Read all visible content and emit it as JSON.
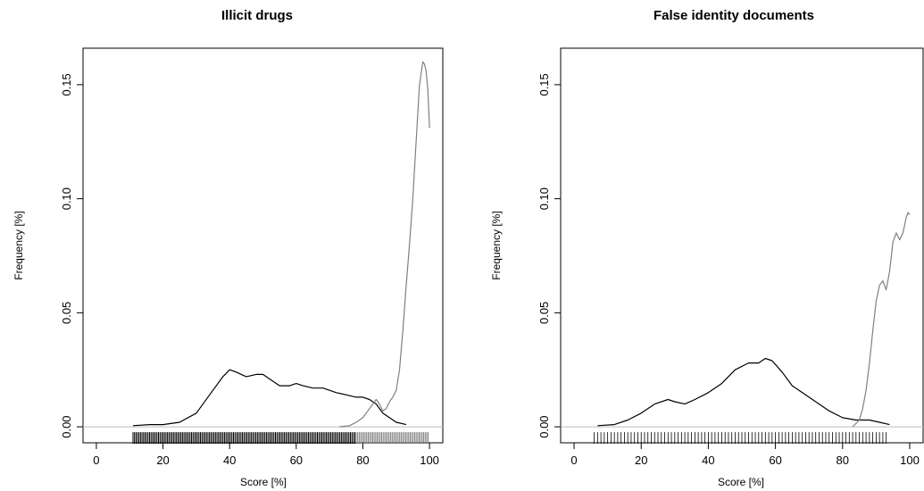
{
  "chart_data": [
    {
      "type": "line",
      "title": "Illicit drugs",
      "xlabel": "Score [%]",
      "ylabel": "Frequency [%]",
      "xlim": [
        -4,
        104
      ],
      "ylim": [
        -0.007,
        0.166
      ],
      "xticks": [
        "0",
        "20",
        "40",
        "60",
        "80",
        "100"
      ],
      "yticks": [
        "0.00",
        "0.05",
        "0.10",
        "0.15"
      ],
      "grid": false,
      "series": [
        {
          "color": "#000000",
          "x": [
            11,
            16,
            20,
            25,
            30,
            35,
            38,
            40,
            42,
            45,
            48,
            50,
            52,
            55,
            58,
            60,
            62,
            65,
            68,
            70,
            72,
            75,
            78,
            80,
            82,
            84,
            86,
            88,
            90,
            93
          ],
          "y": [
            0.0005,
            0.001,
            0.001,
            0.002,
            0.006,
            0.016,
            0.022,
            0.025,
            0.024,
            0.022,
            0.023,
            0.023,
            0.021,
            0.018,
            0.018,
            0.019,
            0.018,
            0.017,
            0.017,
            0.016,
            0.015,
            0.014,
            0.013,
            0.013,
            0.012,
            0.01,
            0.006,
            0.004,
            0.002,
            0.001
          ]
        },
        {
          "color": "#808080",
          "x": [
            73,
            76,
            78,
            80,
            82,
            84,
            85,
            86,
            87,
            88,
            89,
            90,
            91,
            92,
            93,
            94,
            95,
            96,
            97,
            98,
            98.5,
            99,
            99.5,
            100
          ],
          "y": [
            0.0,
            0.0005,
            0.002,
            0.004,
            0.008,
            0.012,
            0.01,
            0.007,
            0.008,
            0.011,
            0.013,
            0.016,
            0.025,
            0.042,
            0.062,
            0.08,
            0.1,
            0.125,
            0.15,
            0.16,
            0.159,
            0.156,
            0.148,
            0.131
          ]
        }
      ],
      "rug": {
        "black_range": [
          11,
          78
        ],
        "gray_range": [
          78,
          100
        ]
      }
    },
    {
      "type": "line",
      "title": "False identity documents",
      "xlabel": "Score [%]",
      "ylabel": "Frequency [%]",
      "xlim": [
        -4,
        104
      ],
      "ylim": [
        -0.007,
        0.166
      ],
      "xticks": [
        "0",
        "20",
        "40",
        "60",
        "80",
        "100"
      ],
      "yticks": [
        "0.00",
        "0.05",
        "0.10",
        "0.15"
      ],
      "grid": false,
      "series": [
        {
          "color": "#000000",
          "x": [
            7,
            12,
            16,
            20,
            24,
            28,
            30,
            33,
            36,
            40,
            44,
            48,
            52,
            55,
            57,
            59,
            62,
            65,
            68,
            72,
            76,
            80,
            84,
            88,
            91,
            94
          ],
          "y": [
            0.0005,
            0.001,
            0.003,
            0.006,
            0.01,
            0.012,
            0.011,
            0.01,
            0.012,
            0.015,
            0.019,
            0.025,
            0.028,
            0.028,
            0.03,
            0.029,
            0.024,
            0.018,
            0.015,
            0.011,
            0.007,
            0.004,
            0.003,
            0.003,
            0.002,
            0.001
          ]
        },
        {
          "color": "#808080",
          "x": [
            83,
            85,
            86,
            87,
            88,
            89,
            90,
            91,
            92,
            93,
            94,
            95,
            96,
            97,
            98,
            99,
            99.5,
            100
          ],
          "y": [
            0.0,
            0.003,
            0.008,
            0.016,
            0.028,
            0.042,
            0.055,
            0.062,
            0.064,
            0.06,
            0.068,
            0.081,
            0.085,
            0.082,
            0.085,
            0.092,
            0.094,
            0.093
          ]
        }
      ],
      "rug": {
        "black_range": [
          6,
          93
        ],
        "gray_range": []
      }
    }
  ]
}
